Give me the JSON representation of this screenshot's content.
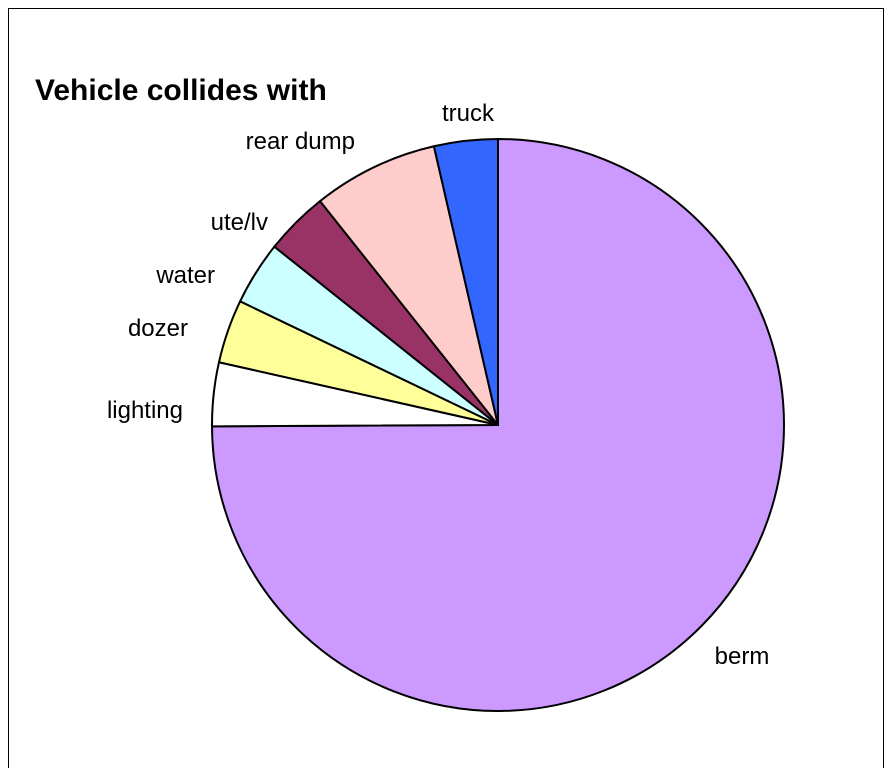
{
  "chart_data": {
    "type": "pie",
    "title": "Vehicle collides with",
    "start_angle_deg": 0,
    "direction": "clockwise",
    "slices": [
      {
        "label": "berm",
        "value": 75.0,
        "color": "#CC99FF"
      },
      {
        "label": "lighting",
        "value": 3.6,
        "color": "#FFFFFF"
      },
      {
        "label": "dozer",
        "value": 3.6,
        "color": "#FFFF99"
      },
      {
        "label": "water",
        "value": 3.6,
        "color": "#CCFFFF"
      },
      {
        "label": "ute/lv",
        "value": 3.6,
        "color": "#993366"
      },
      {
        "label": "rear dump",
        "value": 7.1,
        "color": "#FFCCCC"
      },
      {
        "label": "truck",
        "value": 3.6,
        "color": "#3366FF"
      }
    ]
  }
}
